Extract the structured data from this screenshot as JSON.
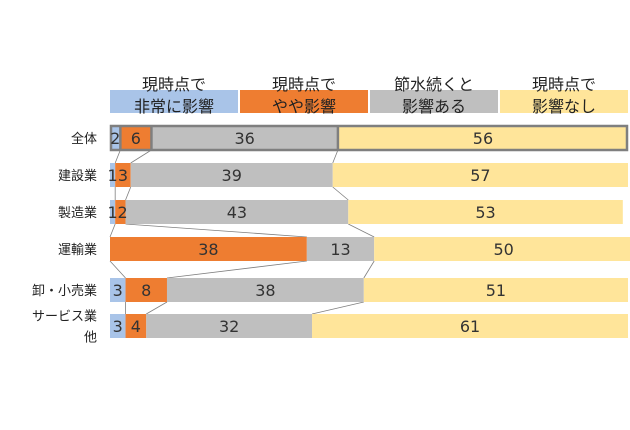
{
  "chart_data": {
    "type": "bar",
    "stacked": true,
    "orientation": "horizontal",
    "normalized_percent": true,
    "series": [
      {
        "name": "現時点で 非常に影響",
        "legend_lines": [
          "現時点で",
          "非常に影響"
        ],
        "color": "#a9c4e8",
        "values": [
          2,
          1,
          1,
          0,
          3,
          3
        ]
      },
      {
        "name": "現時点で やや影響",
        "legend_lines": [
          "現時点で",
          "やや影響"
        ],
        "color": "#ee7d31",
        "values": [
          6,
          3,
          2,
          38,
          8,
          4
        ]
      },
      {
        "name": "節水続くと 影響ある",
        "legend_lines": [
          "節水続くと",
          "影響ある"
        ],
        "color": "#bfbfbf",
        "values": [
          36,
          39,
          43,
          13,
          38,
          32
        ]
      },
      {
        "name": "現時点で 影響なし",
        "legend_lines": [
          "現時点で",
          "影響なし"
        ],
        "color": "#ffe59a",
        "values": [
          56,
          57,
          53,
          50,
          51,
          61
        ]
      }
    ],
    "categories": [
      {
        "name": "全体",
        "lines": [
          "全体"
        ],
        "highlight": true
      },
      {
        "name": "建設業",
        "lines": [
          "建設業"
        ]
      },
      {
        "name": "製造業",
        "lines": [
          "製造業"
        ]
      },
      {
        "name": "運輸業",
        "lines": [
          "運輸業"
        ]
      },
      {
        "name": "卸・小売業",
        "lines": [
          "卸・小売業"
        ]
      },
      {
        "name": "サービス業他",
        "lines": [
          "サービス業",
          "他"
        ]
      }
    ],
    "labels": [
      [
        "2",
        "6",
        "36",
        "56"
      ],
      [
        "1",
        "3",
        "39",
        "57"
      ],
      [
        "1",
        "2",
        "43",
        "53"
      ],
      [
        "",
        "38",
        "13",
        "50"
      ],
      [
        "3",
        "8",
        "38",
        "51"
      ],
      [
        "3",
        "4",
        "32",
        "61"
      ]
    ],
    "xlim": [
      0,
      100
    ],
    "connector_lines": true,
    "legend_position": "top"
  }
}
